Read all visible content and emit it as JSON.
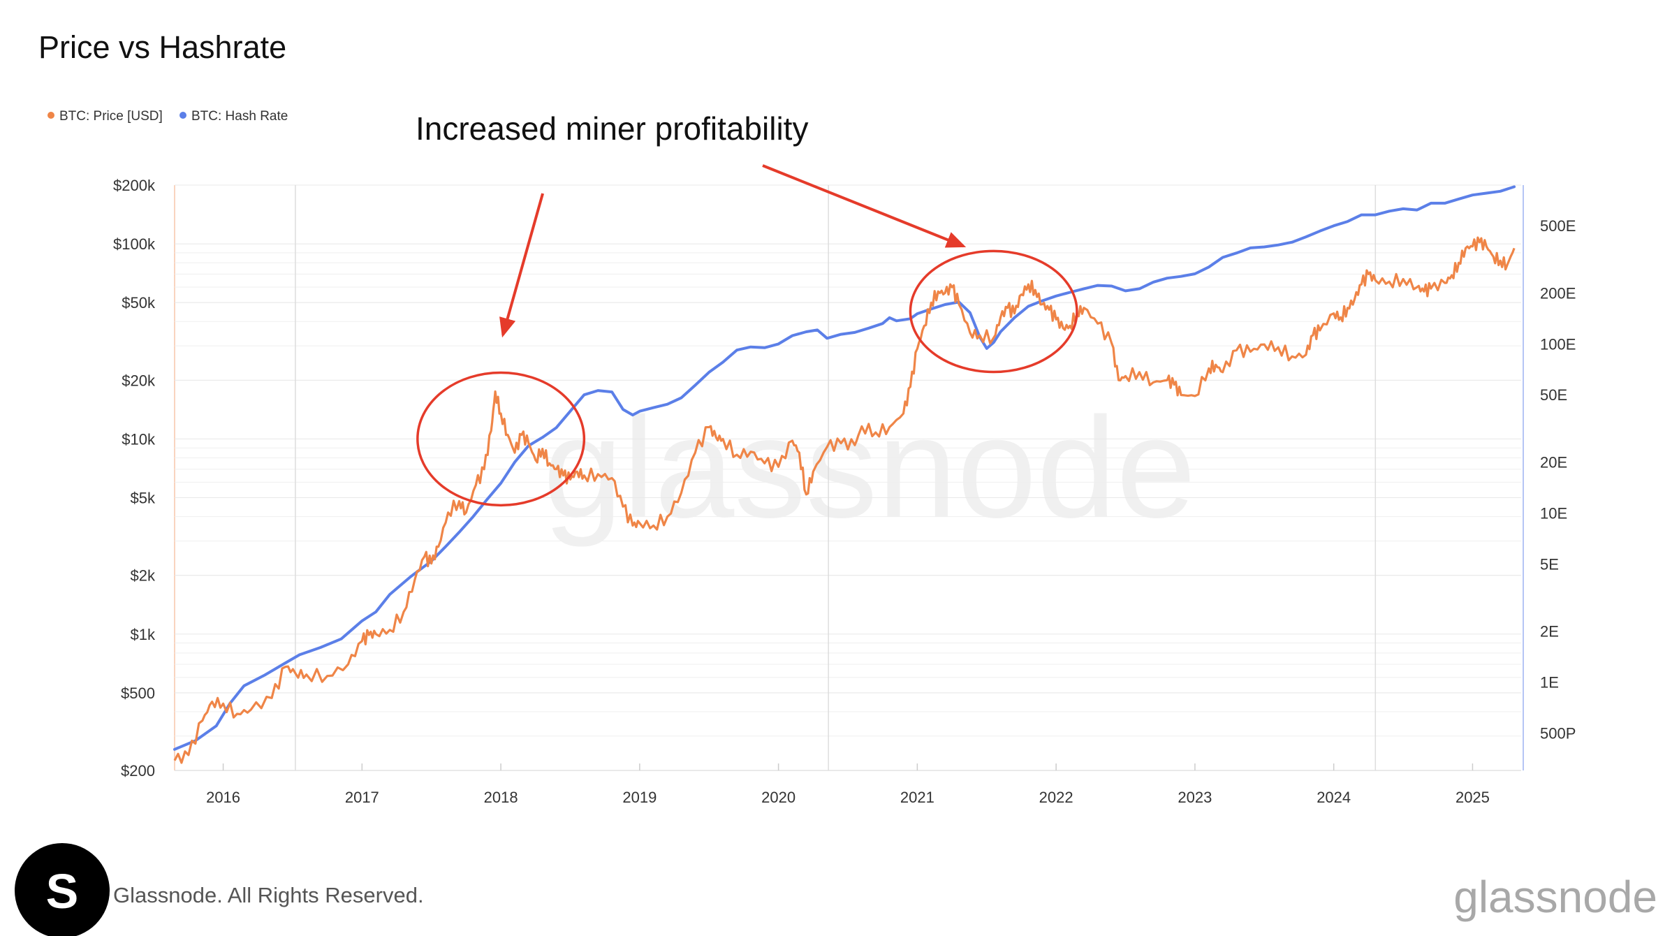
{
  "header": {
    "title": "Price vs Hashrate"
  },
  "footer": {
    "copyright": "Glassnode. All Rights Reserved.",
    "brand_watermark": "glassnode",
    "logo_letter": "S"
  },
  "colors": {
    "price": "#ef8547",
    "hashrate": "#5b7fe8",
    "annotation": "#e53b2a"
  },
  "chart_data": {
    "type": "line",
    "title": "Price vs Hashrate",
    "watermark": "glassnode",
    "legend": {
      "placement": "top-left",
      "items": [
        {
          "name": "BTC: Price [USD]",
          "color": "#ef8547"
        },
        {
          "name": "BTC: Hash Rate",
          "color": "#5b7fe8"
        }
      ]
    },
    "x_axis": {
      "range": [
        2015.65,
        2025.35
      ],
      "ticks": [
        "2016",
        "2017",
        "2018",
        "2019",
        "2020",
        "2021",
        "2022",
        "2023",
        "2024",
        "2025"
      ],
      "tick_values": [
        2016,
        2017,
        2018,
        2019,
        2020,
        2021,
        2022,
        2023,
        2024,
        2025
      ]
    },
    "y_left": {
      "scale": "log",
      "unit": "USD",
      "range": [
        200,
        200000
      ],
      "ticks": [
        "$200",
        "$500",
        "$1k",
        "$2k",
        "$5k",
        "$10k",
        "$20k",
        "$50k",
        "$100k",
        "$200k"
      ],
      "tick_values": [
        200,
        500,
        1000,
        2000,
        5000,
        10000,
        20000,
        50000,
        100000,
        200000
      ]
    },
    "y_right": {
      "scale": "log",
      "unit": "EH/s",
      "range": [
        0.3,
        870
      ],
      "ticks": [
        "500P",
        "1E",
        "2E",
        "5E",
        "10E",
        "20E",
        "50E",
        "100E",
        "200E",
        "500E"
      ],
      "tick_values": [
        0.5,
        1,
        2,
        5,
        10,
        20,
        50,
        100,
        200,
        500
      ]
    },
    "grid": {
      "horizontal": true,
      "vertical": "year lines"
    },
    "series": [
      {
        "name": "BTC: Price [USD]",
        "axis": "left",
        "x": [
          2015.65,
          2015.75,
          2015.85,
          2015.92,
          2016.0,
          2016.1,
          2016.2,
          2016.35,
          2016.45,
          2016.52,
          2016.6,
          2016.75,
          2016.9,
          2017.0,
          2017.05,
          2017.1,
          2017.2,
          2017.3,
          2017.38,
          2017.45,
          2017.5,
          2017.55,
          2017.62,
          2017.7,
          2017.75,
          2017.82,
          2017.88,
          2017.93,
          2017.96,
          2018.0,
          2018.05,
          2018.1,
          2018.15,
          2018.2,
          2018.25,
          2018.3,
          2018.35,
          2018.4,
          2018.45,
          2018.5,
          2018.55,
          2018.6,
          2018.7,
          2018.8,
          2018.88,
          2018.95,
          2019.0,
          2019.1,
          2019.2,
          2019.3,
          2019.4,
          2019.5,
          2019.55,
          2019.6,
          2019.7,
          2019.8,
          2019.9,
          2020.0,
          2020.1,
          2020.15,
          2020.2,
          2020.25,
          2020.35,
          2020.45,
          2020.55,
          2020.6,
          2020.7,
          2020.8,
          2020.9,
          2020.95,
          2021.0,
          2021.05,
          2021.1,
          2021.15,
          2021.2,
          2021.25,
          2021.3,
          2021.38,
          2021.45,
          2021.55,
          2021.6,
          2021.65,
          2021.7,
          2021.75,
          2021.8,
          2021.85,
          2021.9,
          2021.95,
          2022.0,
          2022.05,
          2022.1,
          2022.15,
          2022.2,
          2022.3,
          2022.4,
          2022.45,
          2022.5,
          2022.6,
          2022.7,
          2022.8,
          2022.85,
          2022.9,
          2023.0,
          2023.1,
          2023.15,
          2023.2,
          2023.3,
          2023.4,
          2023.5,
          2023.6,
          2023.7,
          2023.8,
          2023.85,
          2023.9,
          2024.0,
          2024.05,
          2024.1,
          2024.15,
          2024.2,
          2024.25,
          2024.3,
          2024.4,
          2024.5,
          2024.6,
          2024.65,
          2024.7,
          2024.8,
          2024.85,
          2024.9,
          2024.95,
          2025.0,
          2025.05,
          2025.1,
          2025.15,
          2025.2,
          2025.25,
          2025.3
        ],
        "y": [
          225,
          240,
          360,
          450,
          440,
          390,
          410,
          470,
          680,
          630,
          620,
          610,
          700,
          920,
          990,
          1000,
          1050,
          1300,
          1900,
          2500,
          2300,
          2800,
          4200,
          4800,
          4200,
          5800,
          7000,
          11000,
          17500,
          13500,
          10500,
          8500,
          10500,
          9500,
          7800,
          8900,
          7500,
          7000,
          6500,
          6200,
          6800,
          6500,
          6600,
          6300,
          4500,
          3600,
          3700,
          3600,
          4000,
          5300,
          8500,
          11500,
          10200,
          10000,
          8300,
          8600,
          7500,
          7200,
          9800,
          8500,
          5200,
          6800,
          9100,
          9500,
          9300,
          11600,
          10800,
          11500,
          13500,
          18500,
          29000,
          38000,
          50000,
          57000,
          56000,
          60000,
          49000,
          35000,
          34000,
          33000,
          42000,
          47000,
          44000,
          55000,
          62000,
          58000,
          49000,
          46000,
          41000,
          37000,
          38000,
          44000,
          47000,
          39000,
          31000,
          20000,
          21000,
          22000,
          19500,
          20000,
          19000,
          16800,
          16600,
          23000,
          24000,
          22000,
          28500,
          28000,
          30500,
          29500,
          26500,
          27000,
          34000,
          36000,
          44000,
          42000,
          47000,
          52000,
          62000,
          70000,
          65000,
          64000,
          66000,
          60000,
          57000,
          59000,
          63000,
          69000,
          80000,
          95000,
          97000,
          102000,
          97000,
          86000,
          82000,
          78000,
          95000
        ]
      },
      {
        "name": "BTC: Hash Rate",
        "axis": "right",
        "x": [
          2015.65,
          2015.8,
          2015.95,
          2016.05,
          2016.15,
          2016.3,
          2016.45,
          2016.55,
          2016.7,
          2016.85,
          2017.0,
          2017.1,
          2017.2,
          2017.35,
          2017.5,
          2017.6,
          2017.7,
          2017.8,
          2017.9,
          2018.0,
          2018.1,
          2018.2,
          2018.3,
          2018.4,
          2018.5,
          2018.6,
          2018.7,
          2018.8,
          2018.88,
          2018.95,
          2019.0,
          2019.1,
          2019.2,
          2019.3,
          2019.4,
          2019.5,
          2019.6,
          2019.7,
          2019.8,
          2019.9,
          2020.0,
          2020.1,
          2020.2,
          2020.28,
          2020.35,
          2020.45,
          2020.55,
          2020.65,
          2020.75,
          2020.8,
          2020.85,
          2020.95,
          2021.0,
          2021.1,
          2021.2,
          2021.3,
          2021.38,
          2021.45,
          2021.5,
          2021.55,
          2021.6,
          2021.7,
          2021.8,
          2021.9,
          2022.0,
          2022.1,
          2022.2,
          2022.3,
          2022.4,
          2022.5,
          2022.6,
          2022.7,
          2022.8,
          2022.9,
          2023.0,
          2023.1,
          2023.2,
          2023.3,
          2023.4,
          2023.5,
          2023.6,
          2023.7,
          2023.8,
          2023.9,
          2024.0,
          2024.1,
          2024.2,
          2024.3,
          2024.4,
          2024.5,
          2024.6,
          2024.7,
          2024.8,
          2024.9,
          2025.0,
          2025.1,
          2025.2,
          2025.3
        ],
        "y": [
          0.4,
          0.45,
          0.55,
          0.75,
          0.95,
          1.1,
          1.3,
          1.45,
          1.6,
          1.8,
          2.3,
          2.6,
          3.3,
          4.2,
          5.2,
          6.3,
          7.7,
          9.5,
          12,
          15,
          20,
          25,
          28,
          32,
          40,
          50,
          53,
          52,
          41,
          38,
          40,
          42,
          44,
          48,
          57,
          68,
          78,
          92,
          96,
          95,
          100,
          112,
          118,
          121,
          108,
          114,
          117,
          124,
          132,
          143,
          137,
          141,
          151,
          161,
          171,
          177,
          153,
          110,
          94,
          102,
          118,
          143,
          167,
          180,
          192,
          202,
          212,
          222,
          220,
          206,
          212,
          232,
          245,
          251,
          260,
          285,
          325,
          345,
          370,
          375,
          385,
          400,
          430,
          465,
          500,
          530,
          580,
          580,
          610,
          630,
          620,
          680,
          680,
          720,
          760,
          780,
          800,
          850
        ]
      }
    ],
    "annotations": [
      {
        "text": "Increased miner profitability",
        "circles": [
          {
            "cx": 2018.0,
            "cy": 10000,
            "rx_years": 0.6,
            "ry_decades": 0.34
          },
          {
            "cx": 2021.55,
            "cy": 45000,
            "rx_years": 0.6,
            "ry_decades": 0.31
          }
        ]
      }
    ]
  }
}
